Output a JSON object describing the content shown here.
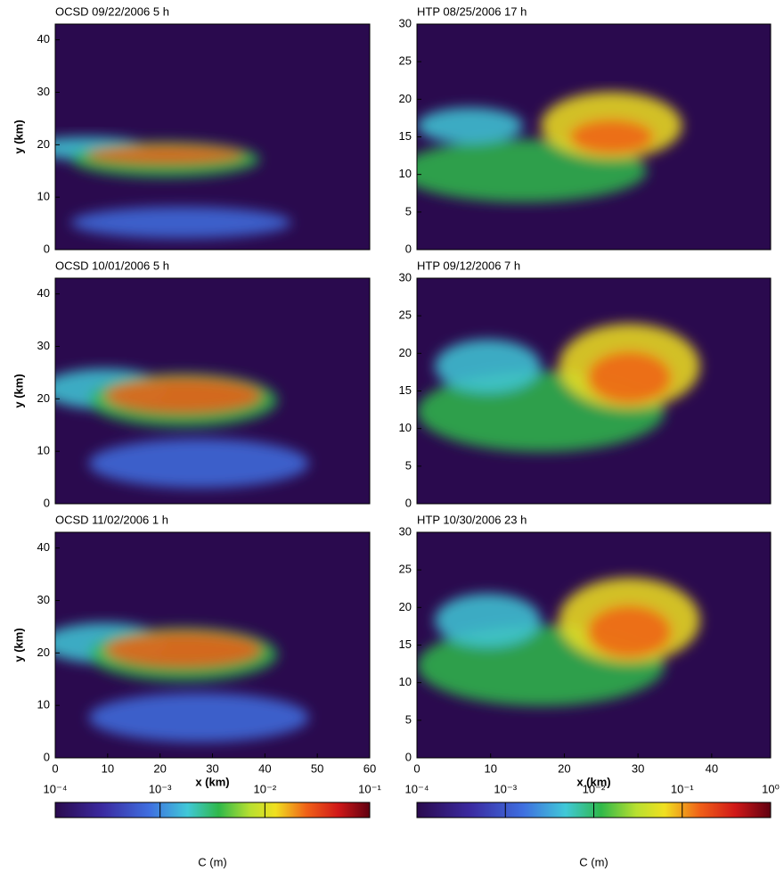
{
  "chart_data": [
    {
      "type": "heatmap",
      "title": "OCSD 09/22/2006 5 h",
      "ylabel": "y (km)",
      "xlim": [
        0,
        60
      ],
      "ylim": [
        0,
        43
      ],
      "yticks": [
        0,
        10,
        20,
        30,
        40
      ]
    },
    {
      "type": "heatmap",
      "title": "HTP 08/25/2006 17 h",
      "xlim": [
        0,
        48
      ],
      "ylim": [
        0,
        30
      ],
      "yticks": [
        0,
        5,
        10,
        15,
        20,
        25,
        30
      ]
    },
    {
      "type": "heatmap",
      "title": "OCSD 10/01/2006 5 h",
      "ylabel": "y (km)",
      "xlim": [
        0,
        60
      ],
      "ylim": [
        0,
        43
      ],
      "yticks": [
        0,
        10,
        20,
        30,
        40
      ]
    },
    {
      "type": "heatmap",
      "title": "HTP 09/12/2006 7 h",
      "xlim": [
        0,
        48
      ],
      "ylim": [
        0,
        30
      ],
      "yticks": [
        0,
        5,
        10,
        15,
        20,
        25,
        30
      ]
    },
    {
      "type": "heatmap",
      "title": "OCSD 11/02/2006 1 h",
      "ylabel": "y (km)",
      "xlabel": "x (km)",
      "xlim": [
        0,
        60
      ],
      "ylim": [
        0,
        43
      ],
      "xticks": [
        0,
        10,
        20,
        30,
        40,
        50,
        60
      ],
      "yticks": [
        0,
        10,
        20,
        30,
        40
      ]
    },
    {
      "type": "heatmap",
      "title": "HTP 10/30/2006 23 h",
      "xlabel": "x (km)",
      "xlim": [
        0,
        48
      ],
      "ylim": [
        0,
        30
      ],
      "xticks": [
        0,
        10,
        20,
        30,
        40
      ],
      "yticks": [
        0,
        5,
        10,
        15,
        20,
        25,
        30
      ]
    },
    {
      "type": "colorbar",
      "label": "C (m)",
      "log": true,
      "clim": [
        0.0001,
        0.1
      ],
      "cticks": [
        {
          "value": 0.0001,
          "label": "10⁻⁴"
        },
        {
          "value": 0.001,
          "label": "10⁻³"
        },
        {
          "value": 0.01,
          "label": "10⁻²"
        },
        {
          "value": 0.1,
          "label": "10⁻¹"
        }
      ]
    },
    {
      "type": "colorbar",
      "label": "C (m)",
      "log": true,
      "clim": [
        0.0001,
        1
      ],
      "cticks": [
        {
          "value": 0.0001,
          "label": "10⁻⁴"
        },
        {
          "value": 0.001,
          "label": "10⁻³"
        },
        {
          "value": 0.01,
          "label": "10⁻²"
        },
        {
          "value": 0.1,
          "label": "10⁻¹"
        },
        {
          "value": 1,
          "label": "10⁰"
        }
      ]
    }
  ]
}
